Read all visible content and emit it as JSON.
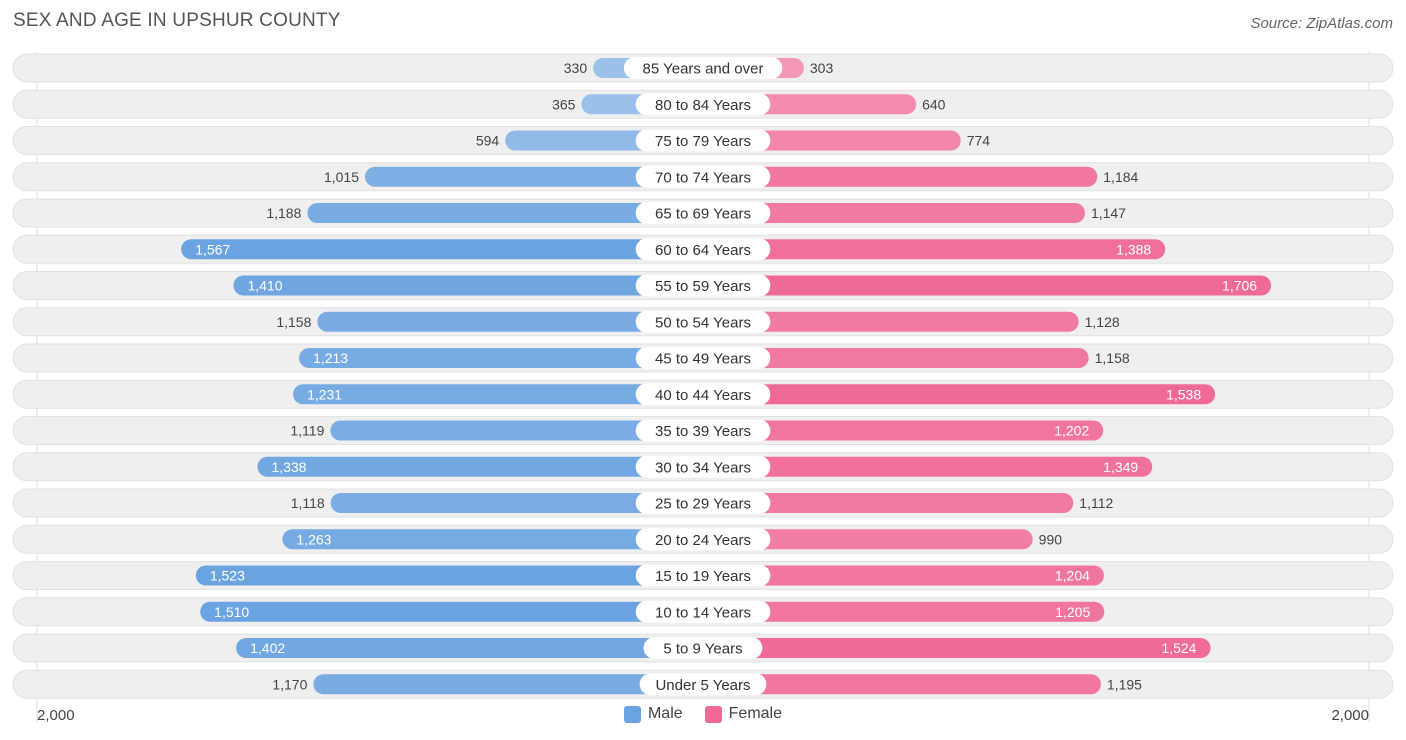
{
  "header": {
    "title": "SEX AND AGE IN UPSHUR COUNTY",
    "source": "Source: ZipAtlas.com"
  },
  "colors": {
    "male": "#6aa3e0",
    "male_light": "#a9c9ee",
    "female": "#f06a96",
    "female_light": "#f6a3be",
    "track": "#efefef",
    "label_pill": "#ffffff"
  },
  "legend": {
    "male_label": "Male",
    "female_label": "Female"
  },
  "axis": {
    "left_label": "2,000",
    "right_label": "2,000"
  },
  "chart_data": {
    "type": "bar",
    "orientation": "horizontal-diverging",
    "title": "SEX AND AGE IN UPSHUR COUNTY",
    "xlim": [
      -2000,
      2000
    ],
    "categories": [
      "85 Years and over",
      "80 to 84 Years",
      "75 to 79 Years",
      "70 to 74 Years",
      "65 to 69 Years",
      "60 to 64 Years",
      "55 to 59 Years",
      "50 to 54 Years",
      "45 to 49 Years",
      "40 to 44 Years",
      "35 to 39 Years",
      "30 to 34 Years",
      "25 to 29 Years",
      "20 to 24 Years",
      "15 to 19 Years",
      "10 to 14 Years",
      "5 to 9 Years",
      "Under 5 Years"
    ],
    "series": [
      {
        "name": "Male",
        "values": [
          330,
          365,
          594,
          1015,
          1188,
          1567,
          1410,
          1158,
          1213,
          1231,
          1119,
          1338,
          1118,
          1263,
          1523,
          1510,
          1402,
          1170
        ],
        "labels": [
          "330",
          "365",
          "594",
          "1,015",
          "1,188",
          "1,567",
          "1,410",
          "1,158",
          "1,213",
          "1,231",
          "1,119",
          "1,338",
          "1,118",
          "1,263",
          "1,523",
          "1,510",
          "1,402",
          "1,170"
        ]
      },
      {
        "name": "Female",
        "values": [
          303,
          640,
          774,
          1184,
          1147,
          1388,
          1706,
          1128,
          1158,
          1538,
          1202,
          1349,
          1112,
          990,
          1204,
          1205,
          1524,
          1195
        ],
        "labels": [
          "303",
          "640",
          "774",
          "1,184",
          "1,147",
          "1,388",
          "1,706",
          "1,128",
          "1,158",
          "1,538",
          "1,202",
          "1,349",
          "1,112",
          "990",
          "1,204",
          "1,205",
          "1,524",
          "1,195"
        ]
      }
    ],
    "legend_position": "bottom-center",
    "grid": false
  }
}
